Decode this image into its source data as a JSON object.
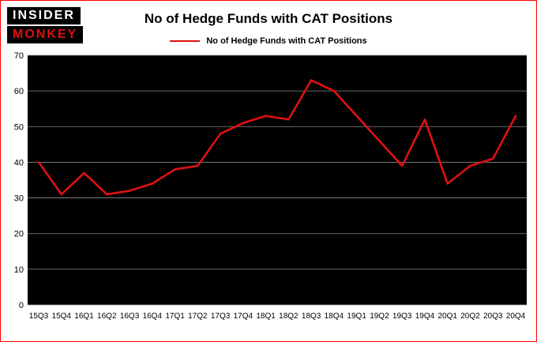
{
  "logo": {
    "line1": "INSIDER",
    "line2": "MONKEY"
  },
  "title": "No of Hedge Funds with CAT Positions",
  "legend": {
    "label": "No of Hedge Funds with CAT Positions",
    "color": "#e01010"
  },
  "colors": {
    "accent": "#e01010",
    "figure_border": "#ff0000",
    "plot_background": "#000000",
    "gridline": "#8a8a8a"
  },
  "chart_data": {
    "type": "line",
    "title": "No of Hedge Funds with CAT Positions",
    "xlabel": "",
    "ylabel": "",
    "categories": [
      "15Q3",
      "15Q4",
      "16Q1",
      "16Q2",
      "16Q3",
      "16Q4",
      "17Q1",
      "17Q2",
      "17Q3",
      "17Q4",
      "18Q1",
      "18Q2",
      "18Q3",
      "18Q4",
      "19Q1",
      "19Q2",
      "19Q3",
      "19Q4",
      "20Q1",
      "20Q2",
      "20Q3",
      "20Q4"
    ],
    "values": [
      40,
      31,
      37,
      31,
      32,
      34,
      38,
      39,
      48,
      51,
      53,
      52,
      63,
      60,
      53,
      46,
      39,
      52,
      34,
      39,
      41,
      53
    ],
    "ylim": [
      0,
      70
    ],
    "yticks": [
      0,
      10,
      20,
      30,
      40,
      50,
      60,
      70
    ],
    "grid": true,
    "legend_position": "top",
    "line_color": "#e01010",
    "plot_bg": "#000000"
  }
}
